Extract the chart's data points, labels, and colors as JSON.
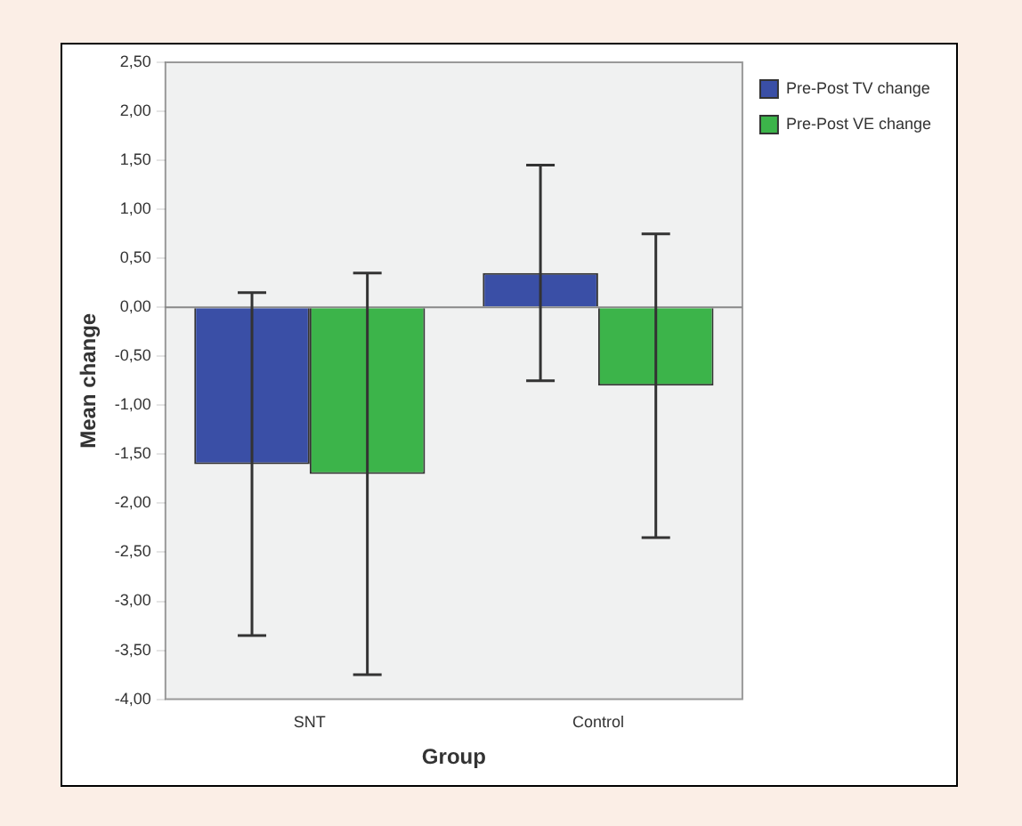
{
  "chart_data": {
    "type": "bar",
    "xlabel": "Group",
    "ylabel": "Mean change",
    "categories": [
      "SNT",
      "Control"
    ],
    "series": [
      {
        "name": "Pre-Post TV change",
        "color": "#3a4fa6",
        "values": [
          -1.6,
          0.35
        ],
        "errors": [
          1.75,
          1.1
        ]
      },
      {
        "name": "Pre-Post VE change",
        "color": "#3cb44a",
        "values": [
          -1.7,
          -0.8
        ],
        "errors": [
          2.05,
          1.55
        ]
      }
    ],
    "ylim": [
      -4,
      2.5
    ],
    "yticks": [
      {
        "value": -4,
        "label": "-4,00"
      },
      {
        "value": -3.5,
        "label": "-3,50"
      },
      {
        "value": -3,
        "label": "-3,00"
      },
      {
        "value": -2.5,
        "label": "-2,50"
      },
      {
        "value": -2,
        "label": "-2,00"
      },
      {
        "value": -1.5,
        "label": "-1,50"
      },
      {
        "value": -1,
        "label": "-1,00"
      },
      {
        "value": -0.5,
        "label": "-0,50"
      },
      {
        "value": 0,
        "label": "0,00"
      },
      {
        "value": 0.5,
        "label": "0,50"
      },
      {
        "value": 1,
        "label": "1,00"
      },
      {
        "value": 1.5,
        "label": "1,50"
      },
      {
        "value": 2,
        "label": "2,00"
      },
      {
        "value": 2.5,
        "label": "2,50"
      }
    ],
    "ref_lines": [
      {
        "axis": "y",
        "value": 0,
        "color": "#888888"
      }
    ],
    "grid": false,
    "legend": "top right"
  }
}
